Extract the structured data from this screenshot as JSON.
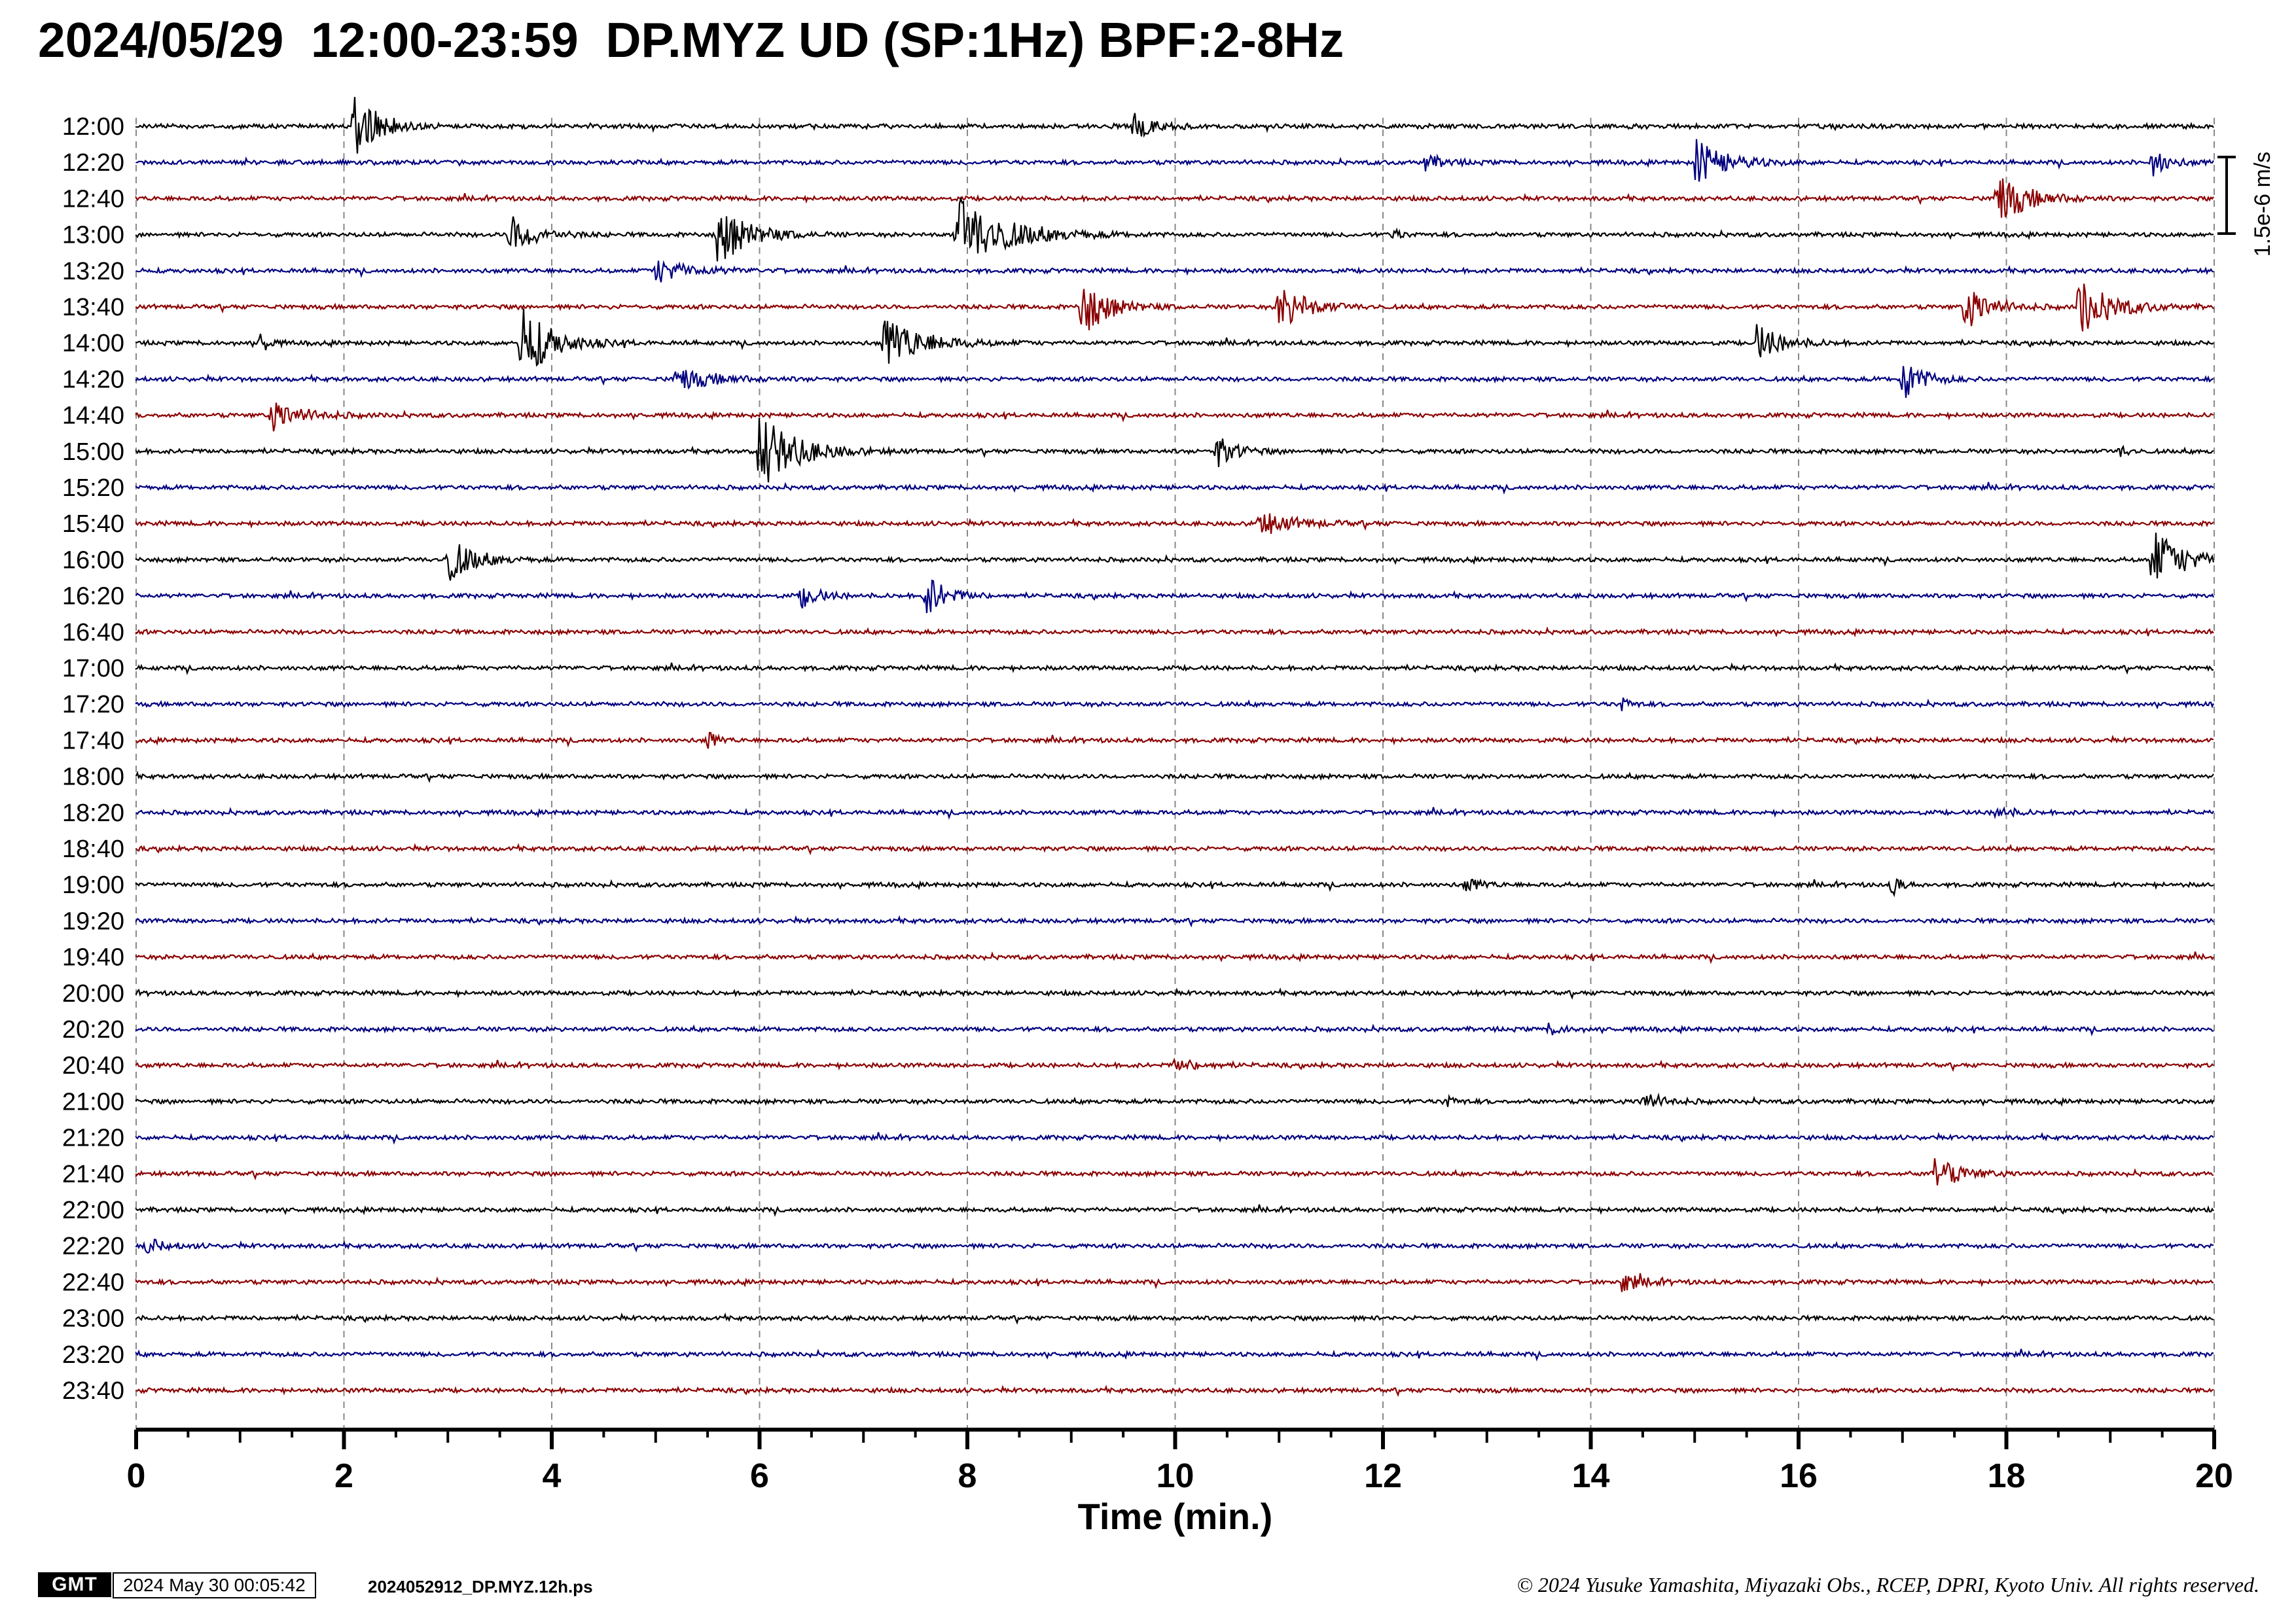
{
  "title": "2024/05/29  12:00-23:59  DP.MYZ UD (SP:1Hz) BPF:2-8Hz",
  "chart_data": {
    "type": "line",
    "title": "2024/05/29  12:00-23:59  DP.MYZ UD (SP:1Hz) BPF:2-8Hz",
    "xlabel": "Time (min.)",
    "ylabel": "",
    "xlim": [
      0,
      20
    ],
    "x_ticks": [
      "0",
      "2",
      "4",
      "6",
      "8",
      "10",
      "12",
      "14",
      "16",
      "18",
      "20"
    ],
    "grid": "dashed vertical every 2 min",
    "scale_bar": "1.5e-6 m/s",
    "trace_colors": [
      "#000000",
      "#000080",
      "#8b0000"
    ],
    "traces": [
      {
        "label": "12:00",
        "events": [
          [
            2.1,
            1.0,
            0.35
          ],
          [
            9.6,
            0.35,
            0.3
          ]
        ]
      },
      {
        "label": "12:20",
        "events": [
          [
            15.0,
            0.6,
            0.5
          ],
          [
            19.4,
            0.35,
            0.25
          ],
          [
            12.4,
            0.2,
            0.3
          ]
        ]
      },
      {
        "label": "12:40",
        "events": [
          [
            17.9,
            0.7,
            0.5
          ]
        ]
      },
      {
        "label": "13:00",
        "events": [
          [
            3.6,
            0.5,
            0.4
          ],
          [
            5.6,
            0.8,
            0.5
          ],
          [
            7.9,
            1.0,
            0.8
          ],
          [
            12.1,
            0.15,
            0.1
          ]
        ]
      },
      {
        "label": "13:20",
        "events": [
          [
            5.0,
            0.3,
            0.6
          ]
        ]
      },
      {
        "label": "13:40",
        "events": [
          [
            9.1,
            0.8,
            0.4
          ],
          [
            11.0,
            0.7,
            0.4
          ],
          [
            17.6,
            0.6,
            0.4
          ],
          [
            18.7,
            0.8,
            0.5
          ]
        ]
      },
      {
        "label": "14:00",
        "events": [
          [
            1.2,
            0.3,
            0.1
          ],
          [
            3.7,
            1.0,
            0.5
          ],
          [
            7.2,
            0.7,
            0.6
          ],
          [
            15.6,
            0.5,
            0.4
          ]
        ]
      },
      {
        "label": "14:20",
        "events": [
          [
            5.2,
            0.3,
            0.6
          ],
          [
            17.0,
            0.6,
            0.3
          ]
        ]
      },
      {
        "label": "14:40",
        "events": [
          [
            1.3,
            0.4,
            0.5
          ]
        ]
      },
      {
        "label": "15:00",
        "events": [
          [
            6.0,
            1.0,
            0.6
          ],
          [
            10.4,
            0.4,
            0.3
          ],
          [
            19.1,
            0.15,
            0.1
          ]
        ]
      },
      {
        "label": "15:20",
        "events": []
      },
      {
        "label": "15:40",
        "events": [
          [
            10.8,
            0.3,
            0.6
          ]
        ]
      },
      {
        "label": "16:00",
        "events": [
          [
            3.0,
            0.6,
            0.4
          ],
          [
            19.4,
            0.8,
            0.5
          ]
        ]
      },
      {
        "label": "16:20",
        "events": [
          [
            6.4,
            0.3,
            0.3
          ],
          [
            7.6,
            0.6,
            0.3
          ]
        ]
      },
      {
        "label": "16:40",
        "events": []
      },
      {
        "label": "17:00",
        "events": []
      },
      {
        "label": "17:20",
        "events": [
          [
            14.3,
            0.2,
            0.1
          ]
        ]
      },
      {
        "label": "17:40",
        "events": [
          [
            5.5,
            0.3,
            0.1
          ]
        ]
      },
      {
        "label": "18:00",
        "events": []
      },
      {
        "label": "18:20",
        "events": [
          [
            17.9,
            0.2,
            0.2
          ]
        ]
      },
      {
        "label": "18:40",
        "events": []
      },
      {
        "label": "19:00",
        "events": [
          [
            12.8,
            0.2,
            0.2
          ],
          [
            16.9,
            0.3,
            0.1
          ]
        ]
      },
      {
        "label": "19:20",
        "events": []
      },
      {
        "label": "19:40",
        "events": []
      },
      {
        "label": "20:00",
        "events": []
      },
      {
        "label": "20:20",
        "events": [
          [
            13.6,
            0.15,
            0.2
          ]
        ]
      },
      {
        "label": "20:40",
        "events": [
          [
            10.0,
            0.15,
            0.4
          ]
        ]
      },
      {
        "label": "21:00",
        "events": [
          [
            12.6,
            0.2,
            0.1
          ],
          [
            14.5,
            0.25,
            0.3
          ]
        ]
      },
      {
        "label": "21:20",
        "events": []
      },
      {
        "label": "21:40",
        "events": [
          [
            17.3,
            0.45,
            0.4
          ]
        ]
      },
      {
        "label": "22:00",
        "events": []
      },
      {
        "label": "22:20",
        "events": [
          [
            0.1,
            0.2,
            0.3
          ]
        ]
      },
      {
        "label": "22:40",
        "events": [
          [
            14.3,
            0.25,
            0.3
          ]
        ]
      },
      {
        "label": "23:00",
        "events": []
      },
      {
        "label": "23:20",
        "events": []
      },
      {
        "label": "23:40",
        "events": []
      }
    ]
  },
  "footer": {
    "logo_text": "GMT",
    "timestamp": "2024 May 30 00:05:42",
    "filename": "2024052912_DP.MYZ.12h.ps",
    "copyright": "© 2024 Yusuke Yamashita, Miyazaki Obs., RCEP, DPRI, Kyoto Univ. All rights reserved."
  }
}
